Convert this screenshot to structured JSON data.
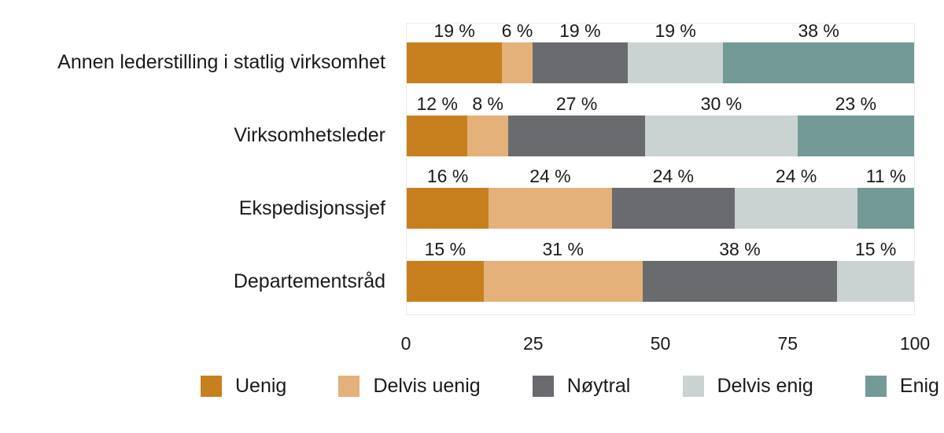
{
  "chart_data": {
    "type": "bar",
    "orientation": "horizontal",
    "stacked": true,
    "title": "",
    "xlabel": "",
    "ylabel": "",
    "xlim": [
      0,
      100
    ],
    "x_ticks": [
      "0",
      "25",
      "50",
      "75",
      "100"
    ],
    "grid": false,
    "legend_position": "bottom",
    "value_suffix": " %",
    "categories": [
      "Annen lederstilling i statlig virksomhet",
      "Virksomhetsleder",
      "Ekspedisjonssjef",
      "Departementsråd"
    ],
    "series": [
      {
        "name": "Uenig",
        "color": "#c8801e",
        "values": [
          19,
          12,
          16,
          15
        ]
      },
      {
        "name": "Delvis uenig",
        "color": "#e3b179",
        "values": [
          6,
          8,
          24,
          31
        ]
      },
      {
        "name": "Nøytral",
        "color": "#6a6b6f",
        "values": [
          19,
          27,
          24,
          38
        ]
      },
      {
        "name": "Delvis enig",
        "color": "#cbd3d2",
        "values": [
          19,
          30,
          24,
          15
        ]
      },
      {
        "name": "Enig",
        "color": "#739a96",
        "values": [
          38,
          23,
          11,
          0
        ]
      }
    ]
  },
  "colors": {
    "text": "#1a1a1a",
    "plot_border": "#ebebeb",
    "background": "#ffffff"
  }
}
